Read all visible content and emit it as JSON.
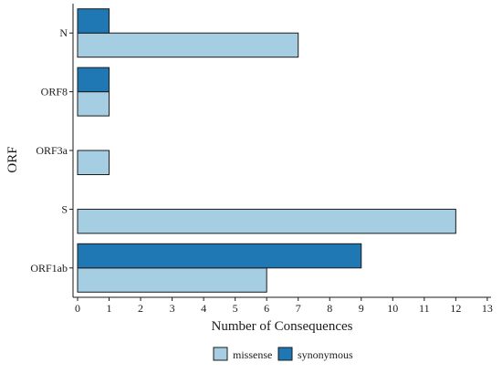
{
  "chart_data": {
    "type": "bar",
    "orientation": "horizontal",
    "categories": [
      "ORF1ab",
      "S",
      "ORF3a",
      "ORF8",
      "N"
    ],
    "series": [
      {
        "name": "missense",
        "values": [
          6,
          12,
          1,
          1,
          7
        ],
        "color": "#a6cee3"
      },
      {
        "name": "synonymous",
        "values": [
          9,
          0,
          0,
          1,
          1
        ],
        "color": "#1f78b4"
      }
    ],
    "xlabel": "Number of Consequences",
    "ylabel": "ORF",
    "xlim": [
      0,
      13
    ],
    "xticks": [
      "0",
      "1",
      "2",
      "3",
      "4",
      "5",
      "6",
      "7",
      "8",
      "9",
      "10",
      "11",
      "12",
      "13"
    ],
    "grid": false,
    "legend_position": "bottom"
  }
}
